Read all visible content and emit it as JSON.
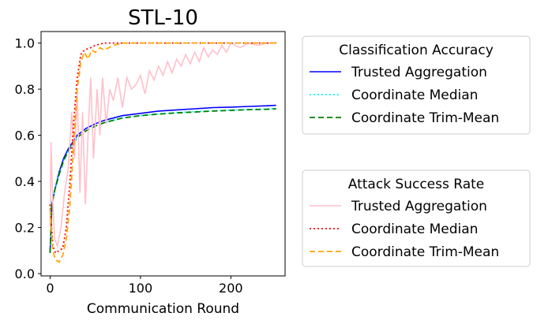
{
  "chart_data": {
    "type": "line",
    "title": "STL-10",
    "xlabel": "Communication Round",
    "ylabel": "",
    "xlim": [
      -10,
      260
    ],
    "ylim": [
      -0.01,
      1.05
    ],
    "xticks": [
      0,
      100,
      200
    ],
    "yticks": [
      0.0,
      0.2,
      0.4,
      0.6,
      0.8,
      1.0
    ],
    "xtick_labels": [
      "0",
      "100",
      "200"
    ],
    "ytick_labels": [
      "0.0",
      "0.2",
      "0.4",
      "0.6",
      "0.8",
      "1.0"
    ],
    "grid": false,
    "legends": [
      {
        "title": "Classification Accuracy",
        "placement": "right-upper",
        "entries": [
          {
            "label": "Trusted Aggregation",
            "color": "#0000ff",
            "style": "solid"
          },
          {
            "label": "Coordinate Median",
            "color": "#00ffff",
            "style": "dotted"
          },
          {
            "label": "Coordinate Trim-Mean",
            "color": "#008000",
            "style": "dashed"
          }
        ]
      },
      {
        "title": "Attack Success Rate",
        "placement": "right-lower",
        "entries": [
          {
            "label": "Trusted Aggregation",
            "color": "#ffc0cb",
            "style": "solid"
          },
          {
            "label": "Coordinate Median",
            "color": "#ff0000",
            "style": "dotted"
          },
          {
            "label": "Coordinate Trim-Mean",
            "color": "#ffa500",
            "style": "dashed"
          }
        ]
      }
    ],
    "series": [
      {
        "name": "Trusted Aggregation",
        "group": "Classification Accuracy",
        "color": "#0000ff",
        "style": "solid",
        "points": [
          [
            0,
            0.09
          ],
          [
            2,
            0.3
          ],
          [
            5,
            0.36
          ],
          [
            10,
            0.44
          ],
          [
            15,
            0.5
          ],
          [
            20,
            0.54
          ],
          [
            25,
            0.57
          ],
          [
            30,
            0.6
          ],
          [
            40,
            0.63
          ],
          [
            50,
            0.65
          ],
          [
            60,
            0.665
          ],
          [
            70,
            0.675
          ],
          [
            80,
            0.685
          ],
          [
            100,
            0.695
          ],
          [
            120,
            0.705
          ],
          [
            140,
            0.71
          ],
          [
            160,
            0.715
          ],
          [
            180,
            0.72
          ],
          [
            200,
            0.722
          ],
          [
            220,
            0.725
          ],
          [
            240,
            0.728
          ],
          [
            250,
            0.73
          ]
        ]
      },
      {
        "name": "Coordinate Median",
        "group": "Classification Accuracy",
        "color": "#00ffff",
        "style": "dotted",
        "points": [
          [
            0,
            0.09
          ],
          [
            2,
            0.3
          ],
          [
            5,
            0.36
          ],
          [
            10,
            0.43
          ],
          [
            15,
            0.49
          ],
          [
            20,
            0.53
          ],
          [
            25,
            0.56
          ],
          [
            30,
            0.59
          ],
          [
            40,
            0.62
          ],
          [
            50,
            0.64
          ],
          [
            60,
            0.655
          ],
          [
            70,
            0.665
          ],
          [
            80,
            0.675
          ],
          [
            100,
            0.685
          ],
          [
            120,
            0.693
          ],
          [
            140,
            0.698
          ],
          [
            160,
            0.703
          ],
          [
            180,
            0.706
          ],
          [
            200,
            0.709
          ],
          [
            220,
            0.712
          ],
          [
            240,
            0.714
          ],
          [
            250,
            0.716
          ]
        ]
      },
      {
        "name": "Coordinate Trim-Mean",
        "group": "Classification Accuracy",
        "color": "#008000",
        "style": "dashed",
        "points": [
          [
            0,
            0.09
          ],
          [
            2,
            0.3
          ],
          [
            5,
            0.36
          ],
          [
            10,
            0.43
          ],
          [
            15,
            0.49
          ],
          [
            20,
            0.53
          ],
          [
            25,
            0.56
          ],
          [
            30,
            0.59
          ],
          [
            40,
            0.62
          ],
          [
            50,
            0.64
          ],
          [
            60,
            0.655
          ],
          [
            70,
            0.665
          ],
          [
            80,
            0.675
          ],
          [
            100,
            0.685
          ],
          [
            120,
            0.692
          ],
          [
            140,
            0.697
          ],
          [
            160,
            0.701
          ],
          [
            180,
            0.705
          ],
          [
            200,
            0.708
          ],
          [
            220,
            0.711
          ],
          [
            240,
            0.713
          ],
          [
            250,
            0.715
          ]
        ]
      },
      {
        "name": "Trusted Aggregation",
        "group": "Attack Success Rate",
        "color": "#ffc0cb",
        "style": "solid",
        "points": [
          [
            0,
            0.2
          ],
          [
            1,
            0.57
          ],
          [
            3,
            0.3
          ],
          [
            5,
            0.15
          ],
          [
            8,
            0.12
          ],
          [
            12,
            0.2
          ],
          [
            16,
            0.35
          ],
          [
            20,
            0.45
          ],
          [
            24,
            0.7
          ],
          [
            27,
            0.5
          ],
          [
            30,
            0.78
          ],
          [
            33,
            0.35
          ],
          [
            36,
            0.7
          ],
          [
            39,
            0.3
          ],
          [
            42,
            0.6
          ],
          [
            45,
            0.85
          ],
          [
            48,
            0.5
          ],
          [
            52,
            0.8
          ],
          [
            55,
            0.6
          ],
          [
            58,
            0.85
          ],
          [
            62,
            0.65
          ],
          [
            66,
            0.8
          ],
          [
            70,
            0.75
          ],
          [
            75,
            0.85
          ],
          [
            80,
            0.72
          ],
          [
            85,
            0.85
          ],
          [
            90,
            0.8
          ],
          [
            95,
            0.82
          ],
          [
            100,
            0.86
          ],
          [
            105,
            0.78
          ],
          [
            110,
            0.88
          ],
          [
            115,
            0.84
          ],
          [
            120,
            0.9
          ],
          [
            125,
            0.86
          ],
          [
            130,
            0.92
          ],
          [
            135,
            0.87
          ],
          [
            140,
            0.93
          ],
          [
            145,
            0.9
          ],
          [
            150,
            0.95
          ],
          [
            155,
            0.91
          ],
          [
            160,
            0.96
          ],
          [
            165,
            0.92
          ],
          [
            170,
            0.98
          ],
          [
            175,
            0.94
          ],
          [
            180,
            0.97
          ],
          [
            185,
            0.95
          ],
          [
            190,
            0.99
          ],
          [
            195,
            0.96
          ],
          [
            200,
            1.0
          ],
          [
            210,
            0.98
          ],
          [
            220,
            1.0
          ],
          [
            230,
            0.99
          ],
          [
            240,
            1.0
          ],
          [
            250,
            1.0
          ]
        ]
      },
      {
        "name": "Coordinate Median",
        "group": "Attack Success Rate",
        "color": "#ff0000",
        "style": "dotted",
        "points": [
          [
            0,
            0.3
          ],
          [
            3,
            0.12
          ],
          [
            6,
            0.09
          ],
          [
            10,
            0.1
          ],
          [
            14,
            0.11
          ],
          [
            18,
            0.2
          ],
          [
            22,
            0.4
          ],
          [
            26,
            0.65
          ],
          [
            30,
            0.85
          ],
          [
            34,
            0.95
          ],
          [
            38,
            0.97
          ],
          [
            45,
            0.98
          ],
          [
            50,
            0.99
          ],
          [
            60,
            1.0
          ],
          [
            80,
            1.0
          ],
          [
            120,
            1.0
          ],
          [
            180,
            1.0
          ],
          [
            250,
            1.0
          ]
        ]
      },
      {
        "name": "Coordinate Trim-Mean",
        "group": "Attack Success Rate",
        "color": "#ffa500",
        "style": "dashed",
        "points": [
          [
            0,
            0.28
          ],
          [
            3,
            0.1
          ],
          [
            6,
            0.06
          ],
          [
            10,
            0.05
          ],
          [
            14,
            0.08
          ],
          [
            18,
            0.15
          ],
          [
            22,
            0.3
          ],
          [
            26,
            0.55
          ],
          [
            30,
            0.8
          ],
          [
            34,
            0.92
          ],
          [
            38,
            0.96
          ],
          [
            42,
            0.93
          ],
          [
            46,
            0.97
          ],
          [
            50,
            0.96
          ],
          [
            55,
            0.98
          ],
          [
            60,
            0.97
          ],
          [
            70,
            0.99
          ],
          [
            80,
            1.0
          ],
          [
            120,
            1.0
          ],
          [
            180,
            1.0
          ],
          [
            250,
            1.0
          ]
        ]
      }
    ]
  }
}
